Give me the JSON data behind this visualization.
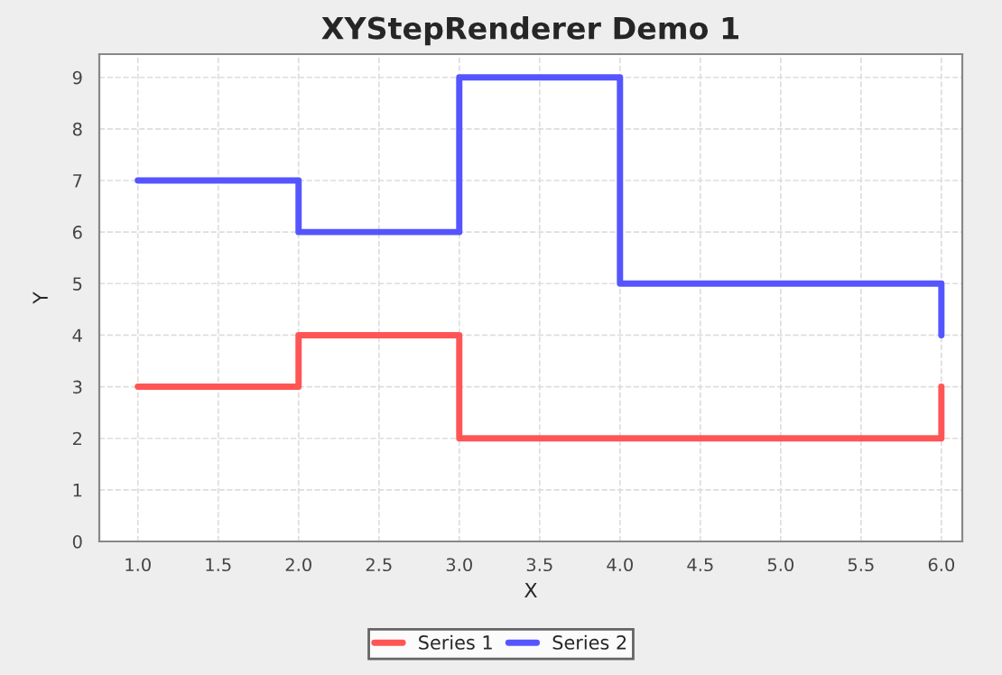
{
  "chart_data": {
    "type": "step",
    "title": "XYStepRenderer Demo 1",
    "xlabel": "X",
    "ylabel": "Y",
    "series": [
      {
        "name": "Series 1",
        "color": "#ff5555",
        "x": [
          1.0,
          2.0,
          3.0,
          6.0
        ],
        "values": [
          3,
          4,
          2,
          3
        ]
      },
      {
        "name": "Series 2",
        "color": "#5555ff",
        "x": [
          1.0,
          2.0,
          3.0,
          4.0,
          6.0
        ],
        "values": [
          7,
          6,
          9,
          5,
          4
        ]
      }
    ],
    "xlim": [
      0.76,
      6.13
    ],
    "ylim": [
      0,
      9.45
    ],
    "xticks": [
      {
        "value": 1.0,
        "label": "1.0"
      },
      {
        "value": 1.5,
        "label": "1.5"
      },
      {
        "value": 2.0,
        "label": "2.0"
      },
      {
        "value": 2.5,
        "label": "2.5"
      },
      {
        "value": 3.0,
        "label": "3.0"
      },
      {
        "value": 3.5,
        "label": "3.5"
      },
      {
        "value": 4.0,
        "label": "4.0"
      },
      {
        "value": 4.5,
        "label": "4.5"
      },
      {
        "value": 5.0,
        "label": "5.0"
      },
      {
        "value": 5.5,
        "label": "5.5"
      },
      {
        "value": 6.0,
        "label": "6.0"
      }
    ],
    "yticks": [
      0,
      1,
      2,
      3,
      4,
      5,
      6,
      7,
      8,
      9
    ],
    "grid": true,
    "legend": "bottom",
    "line_style": "solid",
    "marker": "none"
  }
}
